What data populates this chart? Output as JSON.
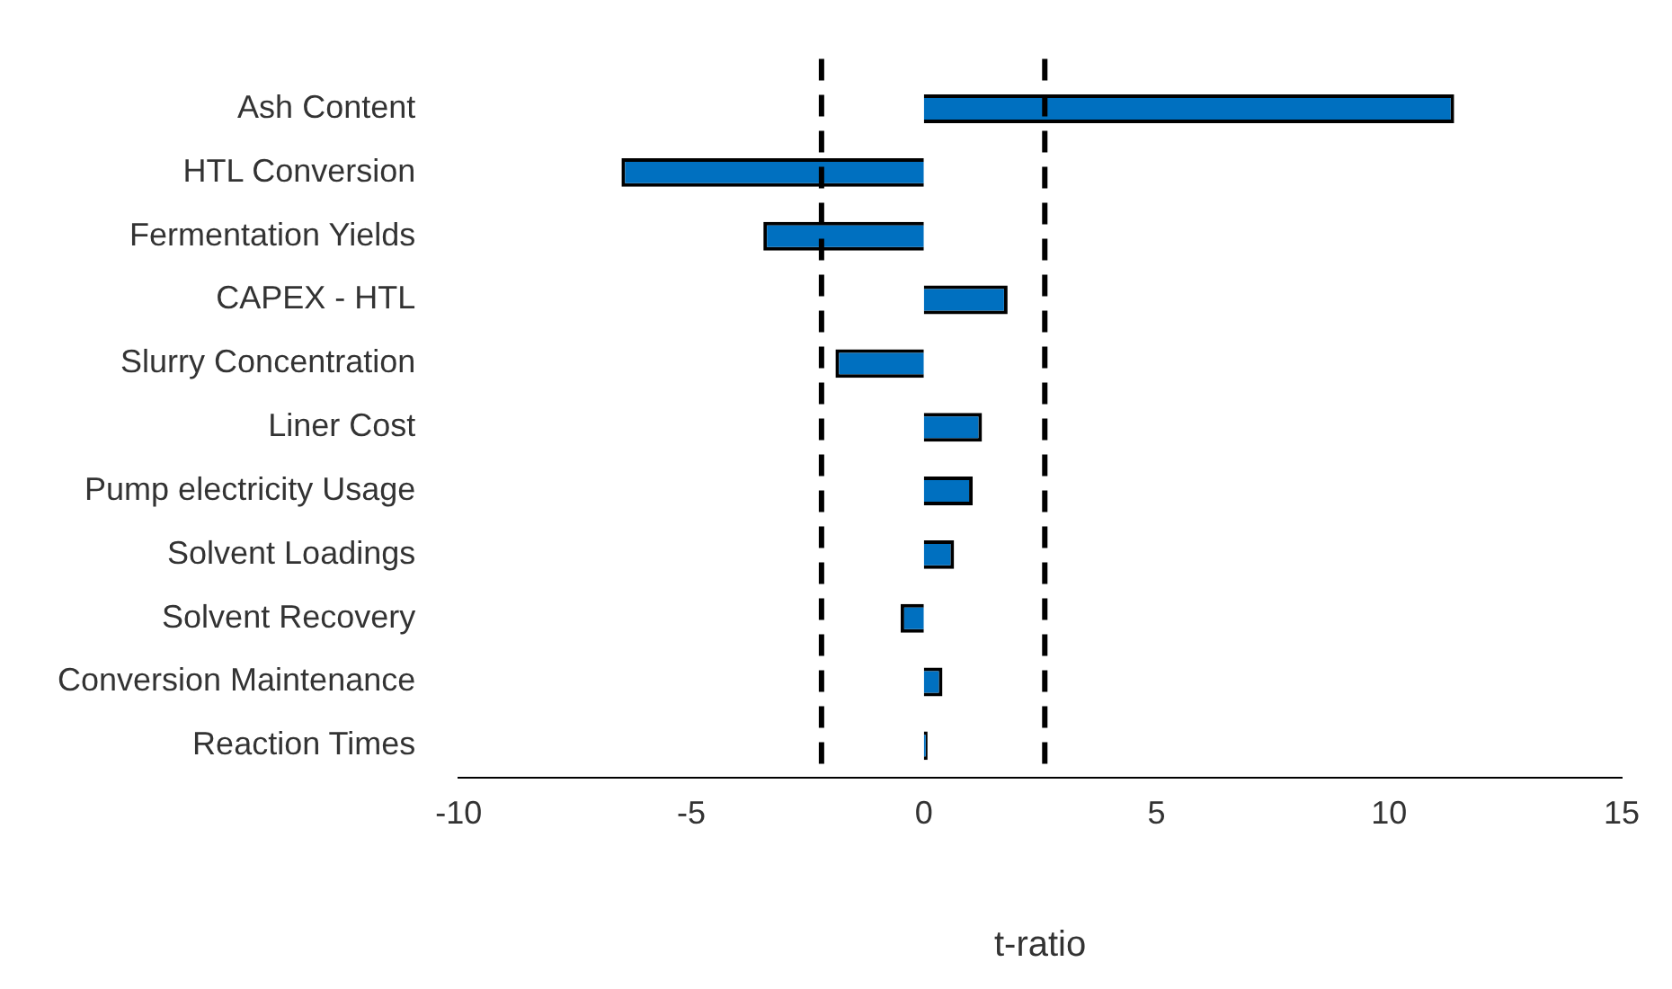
{
  "chart_data": {
    "type": "bar",
    "orientation": "horizontal",
    "xlabel": "t-ratio",
    "categories": [
      "Ash Content",
      "HTL Conversion",
      "Fermentation Yields",
      "CAPEX - HTL",
      "Slurry Concentration",
      "Liner Cost",
      "Pump electricity Usage",
      "Solvent Loadings",
      "Solvent Recovery",
      "Conversion Maintenance",
      "Reaction Times"
    ],
    "values": [
      11.4,
      -6.5,
      -3.45,
      1.8,
      -1.9,
      1.25,
      1.05,
      0.65,
      -0.5,
      0.4,
      0.08
    ],
    "color": "#0070c0",
    "xlim": [
      -10,
      15
    ],
    "xticks": [
      -10,
      -5,
      0,
      5,
      10,
      15
    ],
    "grid": false,
    "ref_lines": [
      {
        "axis": "x",
        "value": -2.2,
        "line_style": "dashed",
        "color": "#000000"
      },
      {
        "axis": "x",
        "value": 2.6,
        "line_style": "dashed",
        "color": "#000000"
      }
    ]
  }
}
